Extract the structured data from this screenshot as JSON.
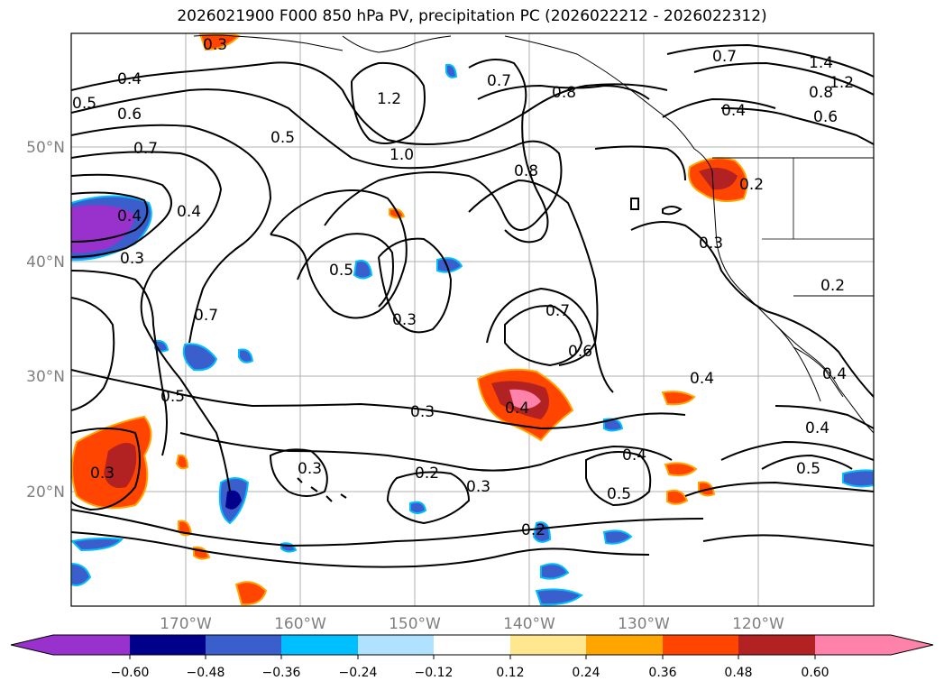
{
  "title": "2026021900 F000 850 hPa PV, precipitation PC (2026022212 - 2026022312)",
  "axes": {
    "lat_labels": [
      "50°N",
      "40°N",
      "30°N",
      "20°N"
    ],
    "lon_labels": [
      "170°W",
      "160°W",
      "150°W",
      "140°W",
      "130°W",
      "120°W"
    ]
  },
  "contour_labels": [
    "0.4",
    "0.5",
    "0.6",
    "0.7",
    "0.3",
    "0.4",
    "0.3",
    "0.5",
    "1.2",
    "1.0",
    "0.8",
    "0.7",
    "0.8",
    "0.7",
    "1.4",
    "1.2",
    "0.8",
    "0.6",
    "0.4",
    "0.2",
    "0.3",
    "0.2",
    "0.5",
    "0.3",
    "0.7",
    "0.6",
    "0.3",
    "0.4",
    "0.4",
    "0.4",
    "0.4",
    "0.5",
    "0.5",
    "0.2",
    "0.3",
    "0.2",
    "0.5",
    "0.3",
    "0.3",
    "0.4",
    "0.7",
    "0.4"
  ],
  "colorbar": {
    "ticks": [
      "−0.60",
      "−0.48",
      "−0.36",
      "−0.24",
      "−0.12",
      "0.12",
      "0.24",
      "0.36",
      "0.48",
      "0.60"
    ],
    "colors": [
      "#9932cc",
      "#00008b",
      "#3a5fcd",
      "#00bfff",
      "#b0e2ff",
      "#ffffff",
      "#ffe78f",
      "#ffa500",
      "#ff4500",
      "#b22222",
      "#ff82ab"
    ]
  },
  "palette": {
    "purple": "#9932cc",
    "navy": "#00008b",
    "blue": "#3a5fcd",
    "sky": "#00bfff",
    "lightblue": "#b0e2ff",
    "yellow": "#ffe78f",
    "orange": "#ffa500",
    "redorange": "#ff4500",
    "firebrick": "#b22222",
    "pink": "#ff82ab",
    "grid": "#b0b0b0"
  }
}
